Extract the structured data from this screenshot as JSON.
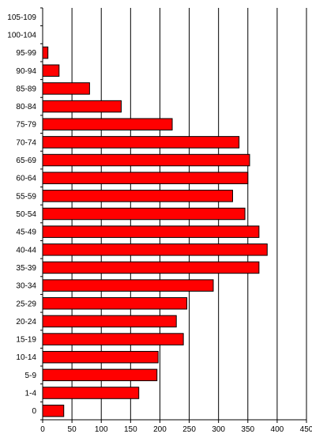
{
  "chart_data": {
    "type": "bar",
    "orientation": "horizontal",
    "title": "",
    "xlabel": "",
    "ylabel": "",
    "categories": [
      "0",
      "1-4",
      "5-9",
      "10-14",
      "15-19",
      "20-24",
      "25-29",
      "30-34",
      "35-39",
      "40-44",
      "45-49",
      "50-54",
      "55-59",
      "60-64",
      "65-69",
      "70-74",
      "75-79",
      "80-84",
      "85-89",
      "90-94",
      "95-99",
      "100-104",
      "105-109"
    ],
    "values": [
      36,
      164,
      195,
      197,
      240,
      228,
      246,
      291,
      369,
      383,
      369,
      345,
      324,
      350,
      353,
      335,
      221,
      134,
      80,
      28,
      9,
      0,
      0
    ],
    "xlim": [
      0,
      450
    ],
    "x_ticks": [
      "0",
      "50",
      "100",
      "150",
      "200",
      "250",
      "300",
      "350",
      "400",
      "450"
    ],
    "x_tick_values": [
      0,
      50,
      100,
      150,
      200,
      250,
      300,
      350,
      400,
      450
    ],
    "grid": "vertical",
    "legend": "none",
    "bar_color": "#ff0000",
    "bar_edge_color": "#000000",
    "grid_color": "#000000"
  }
}
